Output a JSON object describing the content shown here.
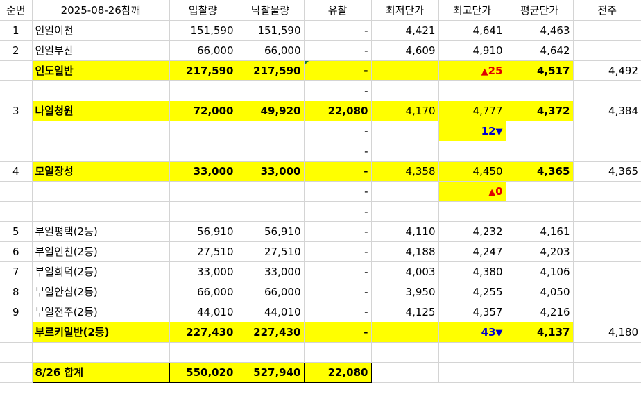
{
  "header": [
    "순번",
    "2025-08-26참깨",
    "입찰량",
    "낙찰물량",
    "유찰",
    "최저단가",
    "최고단가",
    "평균단가",
    "전주"
  ],
  "rows": [
    {
      "no": "1",
      "name": "인일이천",
      "bid": "151,590",
      "won": "151,590",
      "fail": "-",
      "min": "4,421",
      "max": "4,641",
      "avg": "4,463",
      "prev": ""
    },
    {
      "no": "2",
      "name": "인일부산",
      "bid": "66,000",
      "won": "66,000",
      "fail": "-",
      "min": "4,609",
      "max": "4,910",
      "avg": "4,642",
      "prev": ""
    },
    {
      "no": "",
      "name": "인도일반",
      "bid": "217,590",
      "won": "217,590",
      "fail": "-",
      "min": "",
      "max": "25",
      "avg": "4,517",
      "prev": "4,492"
    },
    {
      "no": "",
      "name": "",
      "bid": "",
      "won": "",
      "fail": "-",
      "min": "",
      "max": "",
      "avg": "",
      "prev": ""
    },
    {
      "no": "3",
      "name": "나일청원",
      "bid": "72,000",
      "won": "49,920",
      "fail": "22,080",
      "min": "4,170",
      "max": "4,777",
      "avg": "4,372",
      "prev": "4,384"
    },
    {
      "no": "",
      "name": "",
      "bid": "",
      "won": "",
      "fail": "-",
      "min": "",
      "max": "12",
      "avg": "",
      "prev": ""
    },
    {
      "no": "",
      "name": "",
      "bid": "",
      "won": "",
      "fail": "-",
      "min": "",
      "max": "",
      "avg": "",
      "prev": ""
    },
    {
      "no": "4",
      "name": "모일장성",
      "bid": "33,000",
      "won": "33,000",
      "fail": "-",
      "min": "4,358",
      "max": "4,450",
      "avg": "4,365",
      "prev": "4,365"
    },
    {
      "no": "",
      "name": "",
      "bid": "",
      "won": "",
      "fail": "-",
      "min": "",
      "max": "0",
      "avg": "",
      "prev": ""
    },
    {
      "no": "",
      "name": "",
      "bid": "",
      "won": "",
      "fail": "-",
      "min": "",
      "max": "",
      "avg": "",
      "prev": ""
    },
    {
      "no": "5",
      "name": "부일평택(2등)",
      "bid": "56,910",
      "won": "56,910",
      "fail": "-",
      "min": "4,110",
      "max": "4,232",
      "avg": "4,161",
      "prev": ""
    },
    {
      "no": "6",
      "name": "부일인천(2등)",
      "bid": "27,510",
      "won": "27,510",
      "fail": "-",
      "min": "4,188",
      "max": "4,247",
      "avg": "4,203",
      "prev": ""
    },
    {
      "no": "7",
      "name": "부일회덕(2등)",
      "bid": "33,000",
      "won": "33,000",
      "fail": "-",
      "min": "4,003",
      "max": "4,380",
      "avg": "4,106",
      "prev": ""
    },
    {
      "no": "8",
      "name": "부일안심(2등)",
      "bid": "66,000",
      "won": "66,000",
      "fail": "-",
      "min": "3,950",
      "max": "4,255",
      "avg": "4,050",
      "prev": ""
    },
    {
      "no": "9",
      "name": "부일전주(2등)",
      "bid": "44,010",
      "won": "44,010",
      "fail": "-",
      "min": "4,125",
      "max": "4,357",
      "avg": "4,216",
      "prev": ""
    },
    {
      "no": "",
      "name": "부르키일반(2등)",
      "bid": "227,430",
      "won": "227,430",
      "fail": "-",
      "min": "",
      "max": "43",
      "avg": "4,137",
      "prev": "4,180"
    },
    {
      "no": "",
      "name": "",
      "bid": "",
      "won": "",
      "fail": "",
      "min": "",
      "max": "",
      "avg": "",
      "prev": ""
    }
  ],
  "total": {
    "label": "8/26 합계",
    "bid": "550,020",
    "won": "527,940",
    "fail": "22,080"
  },
  "colors": {
    "highlight": "#ffff00",
    "up": "#e00000",
    "down": "#0000cc"
  }
}
